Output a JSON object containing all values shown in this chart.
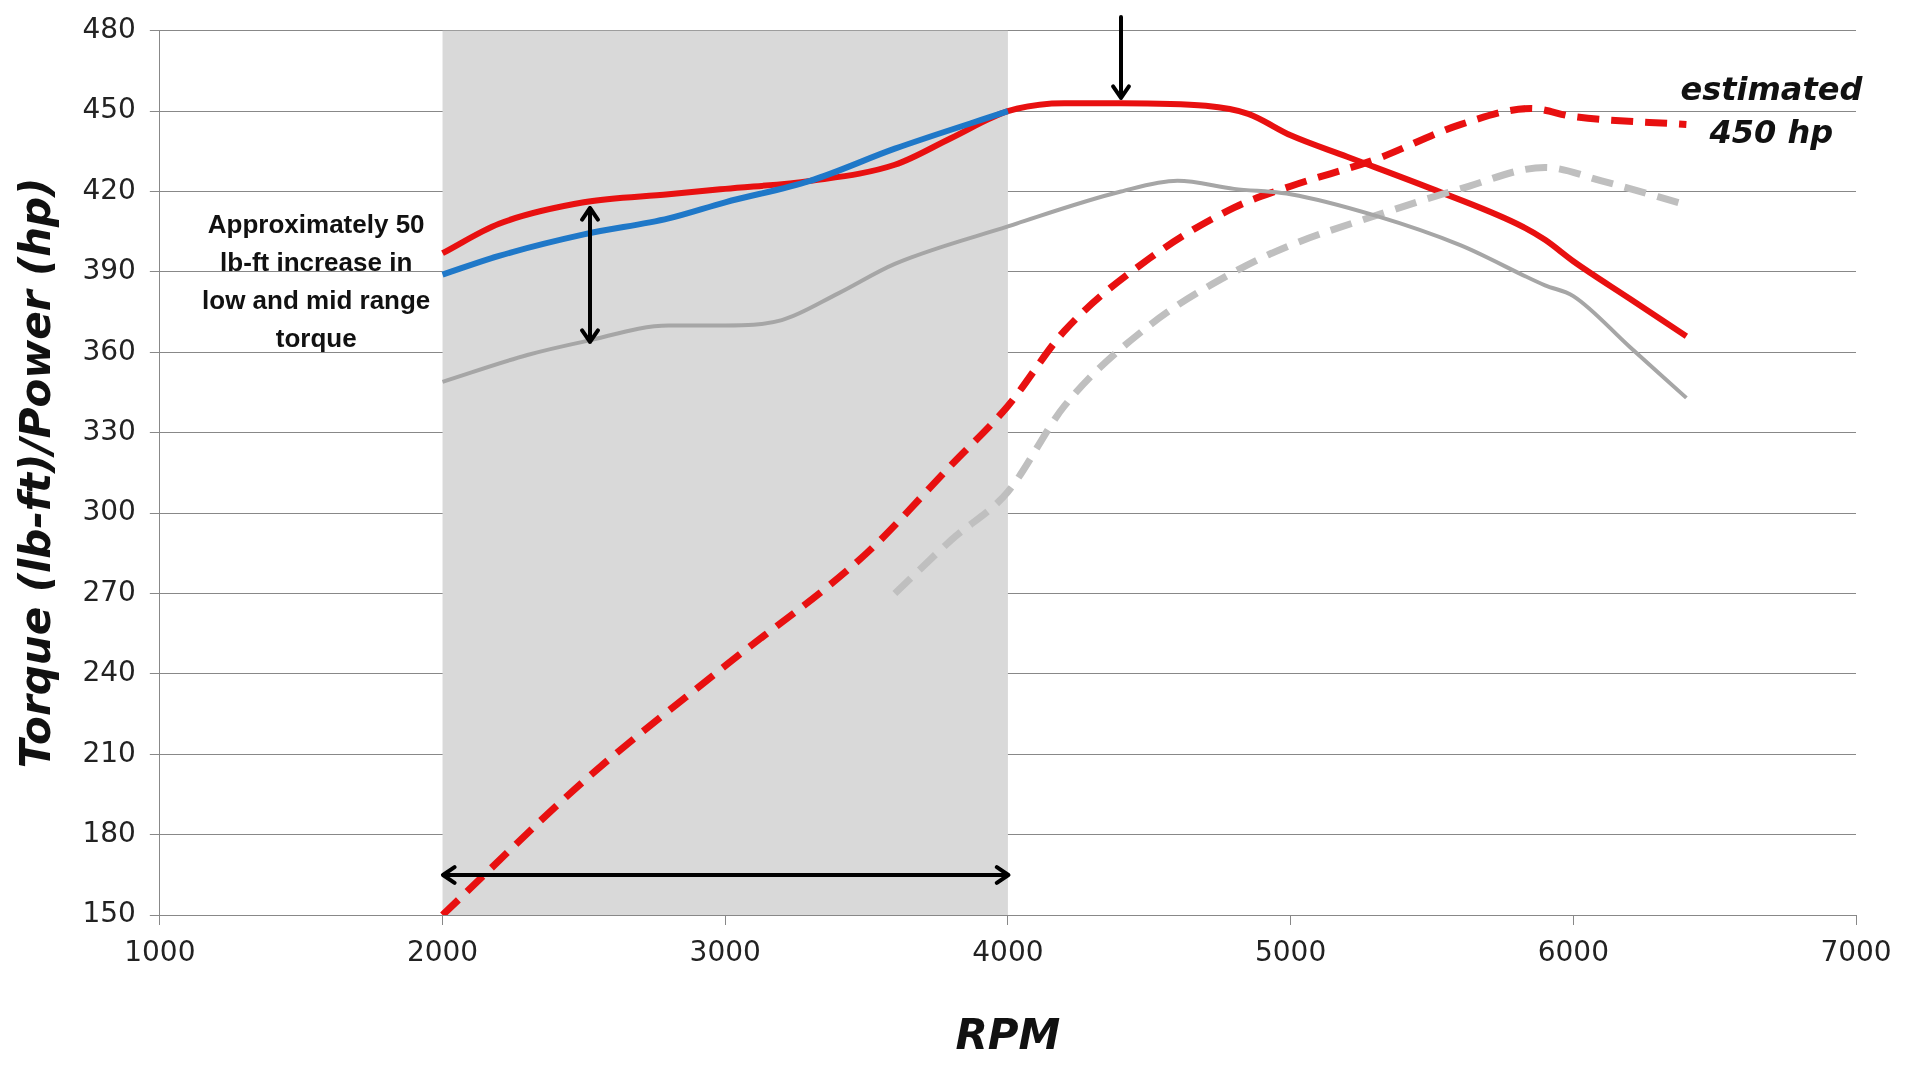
{
  "chart_data": {
    "type": "line",
    "xlabel": "RPM",
    "ylabel": "Torque (lb-ft)/Power (hp)",
    "xlim": [
      1000,
      7000
    ],
    "xticks": [
      1000,
      2000,
      3000,
      4000,
      5000,
      6000,
      7000
    ],
    "ylim": [
      150,
      480
    ],
    "yticks": [
      150,
      180,
      210,
      240,
      270,
      300,
      330,
      360,
      390,
      420,
      450,
      480
    ],
    "grid": "y",
    "marker": "none",
    "bands": [
      {
        "axis": "x",
        "from": 2000,
        "to": 4000,
        "label": null,
        "color": "#d9d9d9"
      }
    ],
    "annotations": [
      "Approximately 50 lb-ft increase in low and mid range torque",
      {
        "text": "estimated 450 hp",
        "x": 6400,
        "y": 445
      }
    ],
    "series": [
      {
        "color": "#a6a6a6",
        "line_style": "solid",
        "x": [
          2000,
          2300,
          2500,
          2800,
          3000,
          3200,
          3400,
          3600,
          4000,
          4400,
          4600,
          4800,
          5000,
          5300,
          5600,
          5900,
          6000,
          6200,
          6400
        ],
        "values": [
          349,
          359,
          364,
          370,
          370,
          372,
          382,
          393,
          407,
          420,
          424,
          421,
          419,
          411,
          400,
          385,
          381,
          362,
          343
        ]
      },
      {
        "color": "#bfbfbf",
        "line_style": "dashed",
        "x": [
          3600,
          3800,
          4000,
          4200,
          4500,
          4800,
          5000,
          5300,
          5600,
          5900,
          6100,
          6400
        ],
        "values": [
          270,
          290,
          308,
          340,
          370,
          390,
          400,
          411,
          421,
          429,
          424,
          415
        ]
      },
      {
        "color": "#1f78c8",
        "line_style": "solid",
        "x": [
          2000,
          2200,
          2500,
          2800,
          3000,
          3300,
          3600,
          4000
        ],
        "values": [
          389,
          396,
          404,
          410,
          416,
          424,
          436,
          450
        ]
      },
      {
        "color": "#e81010",
        "line_style": "solid",
        "x": [
          2000,
          2200,
          2500,
          2800,
          3000,
          3300,
          3600,
          3800,
          4000,
          4200,
          4400,
          4700,
          4850,
          5000,
          5200,
          5500,
          5800,
          5900,
          6000,
          6200,
          6400
        ],
        "values": [
          397,
          408,
          416,
          419,
          421,
          424,
          430,
          440,
          450,
          453,
          453,
          452,
          449,
          441,
          433,
          421,
          408,
          402,
          394,
          380,
          366
        ]
      },
      {
        "color": "#e81010",
        "line_style": "dashed",
        "x": [
          2000,
          2500,
          3000,
          3500,
          3800,
          4000,
          4200,
          4500,
          4800,
          5000,
          5300,
          5600,
          5850,
          6000,
          6400
        ],
        "values": [
          150,
          200,
          243,
          285,
          318,
          340,
          368,
          395,
          414,
          422,
          432,
          445,
          451,
          448,
          445
        ]
      }
    ]
  }
}
